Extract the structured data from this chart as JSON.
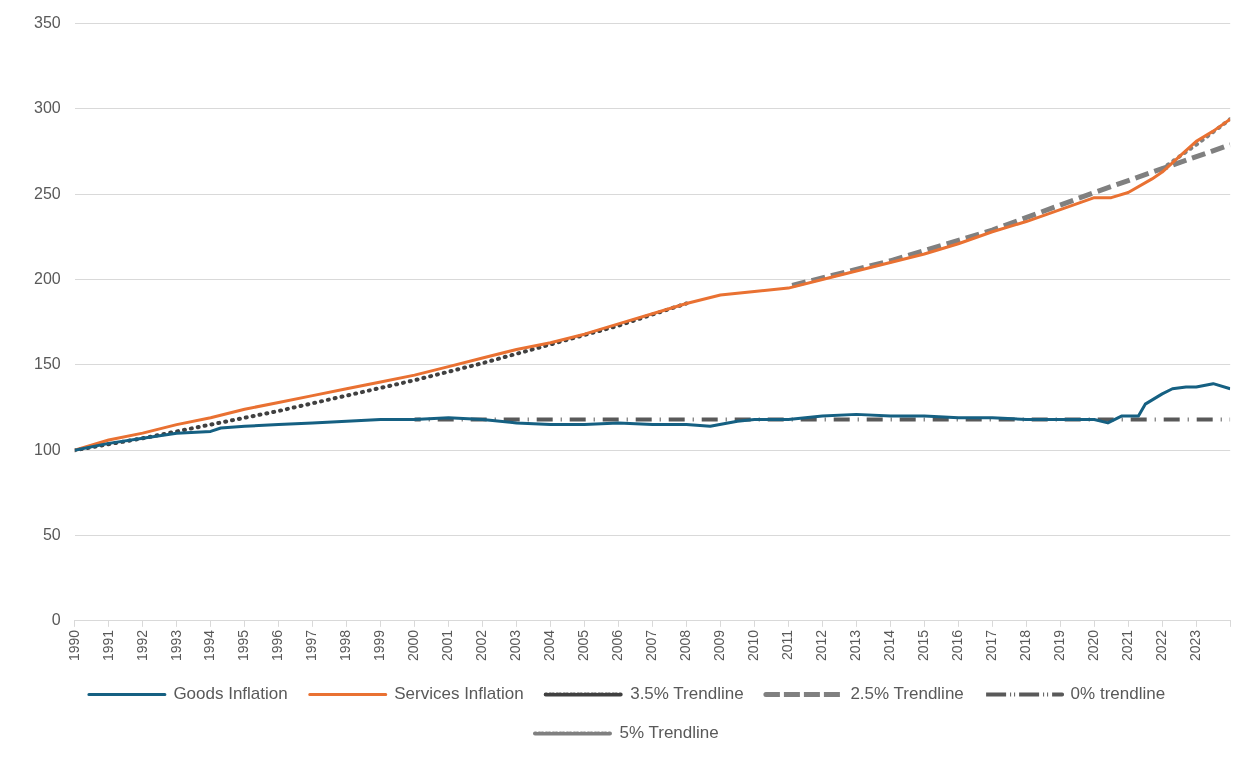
{
  "chart_data": {
    "type": "line",
    "xlim": [
      1990,
      2024
    ],
    "xticks": [
      1990,
      1991,
      1992,
      1993,
      1994,
      1995,
      1996,
      1997,
      1998,
      1999,
      2000,
      2001,
      2002,
      2003,
      2004,
      2005,
      2006,
      2007,
      2008,
      2009,
      2010,
      2011,
      2012,
      2013,
      2014,
      2015,
      2016,
      2017,
      2018,
      2019,
      2020,
      2021,
      2022,
      2023,
      {
        "value": 2024,
        "label": null
      }
    ],
    "ylim": [
      0,
      350
    ],
    "yticks": [
      0,
      50,
      100,
      150,
      200,
      250,
      300,
      350
    ],
    "grid": "y",
    "legend": "bottom",
    "marker": "none",
    "series": [
      {
        "name": "Goods Inflation",
        "color": "#156082",
        "line_style": "solid",
        "x": [
          1990,
          1991,
          1992,
          1993,
          1994,
          1994.3,
          1995,
          1996,
          1997,
          1998,
          1999,
          2000,
          2001,
          2002,
          2003,
          2004,
          2005,
          2006,
          2007,
          2008,
          2008.7,
          2009.5,
          2010,
          2011,
          2012,
          2013,
          2014,
          2015,
          2016,
          2017,
          2018,
          2019,
          2020,
          2020.4,
          2020.8,
          2021.3,
          2021.5,
          2022,
          2022.3,
          2022.7,
          2023,
          2023.5,
          2024
        ],
        "values": [
          100,
          104,
          107,
          110,
          111,
          113,
          114,
          115,
          116,
          117,
          118,
          118,
          119,
          118,
          116,
          115,
          115,
          116,
          115,
          115,
          114,
          117,
          118,
          118,
          120,
          121,
          120,
          120,
          119,
          119,
          118,
          118,
          118,
          116,
          120,
          120,
          127,
          133,
          136,
          137,
          137,
          139,
          136
        ]
      },
      {
        "name": "Services Inflation",
        "color": "#e97132",
        "line_style": "solid",
        "x": [
          1990,
          1991,
          1992,
          1993,
          1994,
          1995,
          1996,
          1997,
          1998,
          1999,
          2000,
          2001,
          2002,
          2003,
          2004,
          2005,
          2006,
          2007,
          2008,
          2009,
          2010,
          2011,
          2012,
          2013,
          2014,
          2015,
          2016,
          2017,
          2018,
          2019,
          2020,
          2020.5,
          2021,
          2021.7,
          2022,
          2022.5,
          2023,
          2023.5,
          2024
        ],
        "values": [
          100,
          106,
          110,
          115,
          119,
          124,
          128,
          132,
          136,
          140,
          144,
          149,
          154,
          159,
          163,
          168,
          174,
          180,
          186,
          191,
          193,
          195,
          200,
          205,
          210,
          215,
          221,
          228,
          234,
          241,
          248,
          248,
          251,
          259,
          263,
          272,
          281,
          287,
          294
        ]
      },
      {
        "name": "3.5% Trendline",
        "color": "#404040",
        "line_style": "dotted",
        "x": [
          1990,
          1992,
          1994,
          1996,
          1998,
          2000,
          2002,
          2004,
          2006,
          2008
        ],
        "values": [
          100,
          107,
          115,
          123,
          132,
          141,
          151,
          162,
          173,
          186
        ]
      },
      {
        "name": "2.5% Trendline",
        "color": "#808080",
        "line_style": "dashed",
        "x": [
          2011,
          2014,
          2017,
          2020,
          2022,
          2024
        ],
        "values": [
          196,
          211,
          229,
          251,
          265,
          279
        ]
      },
      {
        "name": "0% trendline",
        "color": "#595959",
        "line_style": "dashdot",
        "x": [
          2000,
          2024
        ],
        "values": [
          118,
          118
        ]
      },
      {
        "name": "5% Trendline",
        "color": "#808080",
        "line_style": "dotted",
        "x": [
          2022,
          2023,
          2024
        ],
        "values": [
          265,
          279,
          294
        ]
      }
    ]
  }
}
